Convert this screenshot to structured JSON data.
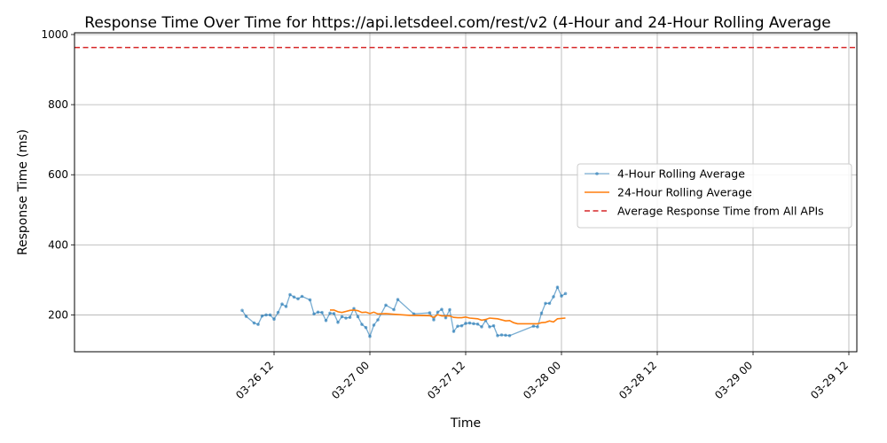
{
  "chart_data": {
    "type": "line",
    "title": "Response Time Over Time for https://api.letsdeel.com/rest/v2 (4-Hour and 24-Hour Rolling Average",
    "xlabel": "Time",
    "ylabel": "Response Time (ms)",
    "x_axis_type": "datetime",
    "xlim": [
      "2026-03-25 11:00",
      "2026-03-29 13:00"
    ],
    "ylim": [
      95,
      1005
    ],
    "x_ticks": [
      {
        "value": "2026-03-26 12:00",
        "label": "03-26 12"
      },
      {
        "value": "2026-03-27 00:00",
        "label": "03-27 00"
      },
      {
        "value": "2026-03-27 12:00",
        "label": "03-27 12"
      },
      {
        "value": "2026-03-28 00:00",
        "label": "03-28 00"
      },
      {
        "value": "2026-03-28 12:00",
        "label": "03-28 12"
      },
      {
        "value": "2026-03-29 00:00",
        "label": "03-29 00"
      },
      {
        "value": "2026-03-29 12:00",
        "label": "03-29 12"
      }
    ],
    "y_ticks": [
      200,
      400,
      600,
      800,
      1000
    ],
    "grid": true,
    "legend": "center-right",
    "series": [
      {
        "name": "4-Hour Rolling Average",
        "color": "#1f77b4",
        "style": "line-with-markers",
        "points": [
          [
            "2026-03-26 08:00",
            213
          ],
          [
            "2026-03-26 08:30",
            196
          ],
          [
            "2026-03-26 09:30",
            177
          ],
          [
            "2026-03-26 10:00",
            173
          ],
          [
            "2026-03-26 10:30",
            197
          ],
          [
            "2026-03-26 11:00",
            200
          ],
          [
            "2026-03-26 11:30",
            200
          ],
          [
            "2026-03-26 12:00",
            188
          ],
          [
            "2026-03-26 12:30",
            207
          ],
          [
            "2026-03-26 13:00",
            231
          ],
          [
            "2026-03-26 13:30",
            224
          ],
          [
            "2026-03-26 14:00",
            258
          ],
          [
            "2026-03-26 14:30",
            251
          ],
          [
            "2026-03-26 15:00",
            246
          ],
          [
            "2026-03-26 15:30",
            253
          ],
          [
            "2026-03-26 16:30",
            243
          ],
          [
            "2026-03-26 17:00",
            203
          ],
          [
            "2026-03-26 17:30",
            208
          ],
          [
            "2026-03-26 18:00",
            207
          ],
          [
            "2026-03-26 18:30",
            184
          ],
          [
            "2026-03-26 19:00",
            205
          ],
          [
            "2026-03-26 19:30",
            204
          ],
          [
            "2026-03-26 20:00",
            179
          ],
          [
            "2026-03-26 20:30",
            195
          ],
          [
            "2026-03-26 21:00",
            191
          ],
          [
            "2026-03-26 21:30",
            193
          ],
          [
            "2026-03-26 22:00",
            218
          ],
          [
            "2026-03-26 22:30",
            195
          ],
          [
            "2026-03-26 23:00",
            173
          ],
          [
            "2026-03-26 23:30",
            164
          ],
          [
            "2026-03-27 00:00",
            139
          ],
          [
            "2026-03-27 00:30",
            171
          ],
          [
            "2026-03-27 01:00",
            186
          ],
          [
            "2026-03-27 02:00",
            228
          ],
          [
            "2026-03-27 03:00",
            215
          ],
          [
            "2026-03-27 03:30",
            244
          ],
          [
            "2026-03-27 05:30",
            203
          ],
          [
            "2026-03-27 07:30",
            206
          ],
          [
            "2026-03-27 08:00",
            186
          ],
          [
            "2026-03-27 08:30",
            208
          ],
          [
            "2026-03-27 09:00",
            216
          ],
          [
            "2026-03-27 09:30",
            192
          ],
          [
            "2026-03-27 10:00",
            215
          ],
          [
            "2026-03-27 10:30",
            153
          ],
          [
            "2026-03-27 11:00",
            168
          ],
          [
            "2026-03-27 11:30",
            169
          ],
          [
            "2026-03-27 12:00",
            176
          ],
          [
            "2026-03-27 12:30",
            177
          ],
          [
            "2026-03-27 13:00",
            175
          ],
          [
            "2026-03-27 13:30",
            174
          ],
          [
            "2026-03-27 14:00",
            166
          ],
          [
            "2026-03-27 14:30",
            184
          ],
          [
            "2026-03-27 15:00",
            166
          ],
          [
            "2026-03-27 15:30",
            169
          ],
          [
            "2026-03-27 16:00",
            141
          ],
          [
            "2026-03-27 16:30",
            143
          ],
          [
            "2026-03-27 17:00",
            142
          ],
          [
            "2026-03-27 17:30",
            141
          ],
          [
            "2026-03-27 20:30",
            168
          ],
          [
            "2026-03-27 21:00",
            166
          ],
          [
            "2026-03-27 21:30",
            205
          ],
          [
            "2026-03-27 22:00",
            233
          ],
          [
            "2026-03-27 22:30",
            233
          ],
          [
            "2026-03-27 23:00",
            252
          ],
          [
            "2026-03-27 23:30",
            279
          ],
          [
            "2026-03-28 00:00",
            254
          ],
          [
            "2026-03-28 00:30",
            261
          ]
        ]
      },
      {
        "name": "24-Hour Rolling Average",
        "color": "#ff7f0e",
        "style": "line",
        "points": [
          [
            "2026-03-26 19:00",
            214
          ],
          [
            "2026-03-26 19:30",
            214
          ],
          [
            "2026-03-26 20:00",
            209
          ],
          [
            "2026-03-26 20:30",
            207
          ],
          [
            "2026-03-26 21:00",
            210
          ],
          [
            "2026-03-26 21:30",
            213
          ],
          [
            "2026-03-26 22:00",
            214
          ],
          [
            "2026-03-26 22:30",
            212
          ],
          [
            "2026-03-26 23:00",
            207
          ],
          [
            "2026-03-26 23:30",
            208
          ],
          [
            "2026-03-27 00:00",
            204
          ],
          [
            "2026-03-27 00:30",
            208
          ],
          [
            "2026-03-27 01:00",
            203
          ],
          [
            "2026-03-27 02:00",
            204
          ],
          [
            "2026-03-27 03:00",
            202
          ],
          [
            "2026-03-27 05:00",
            199
          ],
          [
            "2026-03-27 07:30",
            198
          ],
          [
            "2026-03-27 08:00",
            193
          ],
          [
            "2026-03-27 08:30",
            201
          ],
          [
            "2026-03-27 09:00",
            197
          ],
          [
            "2026-03-27 10:00",
            197
          ],
          [
            "2026-03-27 10:30",
            193
          ],
          [
            "2026-03-27 11:00",
            192
          ],
          [
            "2026-03-27 11:30",
            192
          ],
          [
            "2026-03-27 12:00",
            194
          ],
          [
            "2026-03-27 12:30",
            191
          ],
          [
            "2026-03-27 13:30",
            189
          ],
          [
            "2026-03-27 14:00",
            185
          ],
          [
            "2026-03-27 14:30",
            187
          ],
          [
            "2026-03-27 15:00",
            191
          ],
          [
            "2026-03-27 15:30",
            190
          ],
          [
            "2026-03-27 16:00",
            189
          ],
          [
            "2026-03-27 17:00",
            183
          ],
          [
            "2026-03-27 17:30",
            184
          ],
          [
            "2026-03-27 18:00",
            178
          ],
          [
            "2026-03-27 18:30",
            175
          ],
          [
            "2026-03-27 21:00",
            175
          ],
          [
            "2026-03-27 21:30",
            178
          ],
          [
            "2026-03-27 22:00",
            179
          ],
          [
            "2026-03-27 22:30",
            183
          ],
          [
            "2026-03-27 23:00",
            180
          ],
          [
            "2026-03-27 23:30",
            189
          ],
          [
            "2026-03-28 00:30",
            191
          ]
        ]
      },
      {
        "name": "Average Response Time from All APIs",
        "color": "#d62728",
        "style": "dashed-horizontal",
        "value": 963
      }
    ]
  }
}
